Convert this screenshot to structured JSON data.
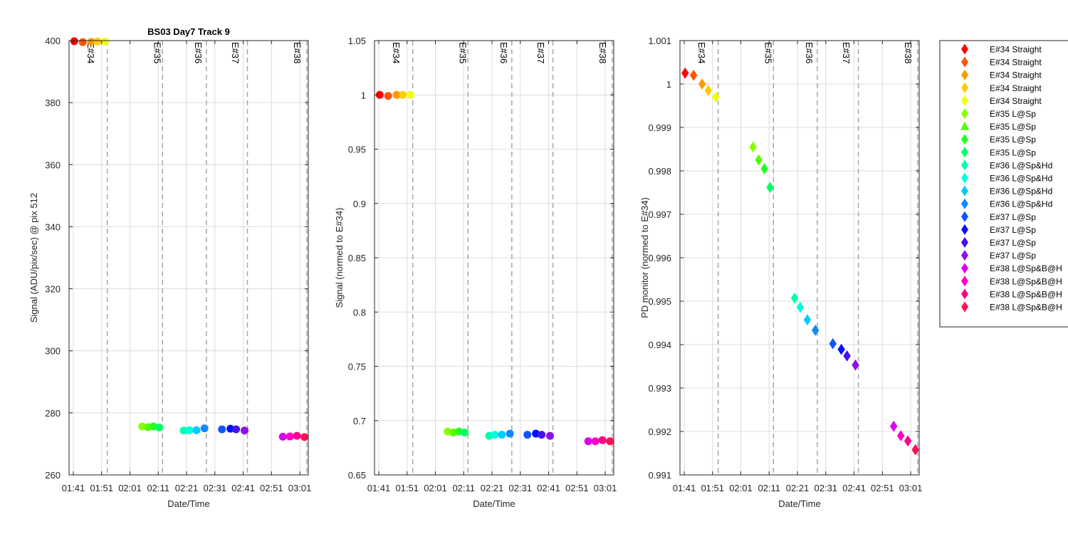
{
  "figure_title": "BS03 Day7 Track 9",
  "chart_data": [
    {
      "type": "scatter",
      "title": "BS03 Day7 Track 9",
      "xlabel": "Date/Time",
      "ylabel": "Signal (ADU/pix/sec) @ pix 512",
      "x_ticks": [
        "01:41",
        "01:51",
        "02:01",
        "02:11",
        "02:21",
        "02:31",
        "02:41",
        "02:51",
        "03:01"
      ],
      "x_range": [
        "01:39:30",
        "03:04:00"
      ],
      "ylim": [
        260,
        400
      ],
      "y_ticks": [
        "260",
        "280",
        "300",
        "320",
        "340",
        "360",
        "380",
        "400"
      ],
      "grid": true,
      "points": [
        {
          "x": "01:41:20",
          "y": 399.8,
          "color": "#ff0000"
        },
        {
          "x": "01:44:20",
          "y": 399.5,
          "color": "#ff5500"
        },
        {
          "x": "01:47:20",
          "y": 399.6,
          "color": "#ff9900"
        },
        {
          "x": "01:49:30",
          "y": 399.7,
          "color": "#ffcc00"
        },
        {
          "x": "01:52:10",
          "y": 399.7,
          "color": "#eeff11"
        },
        {
          "x": "02:05:20",
          "y": 275.6,
          "color": "#88ff00"
        },
        {
          "x": "02:07:20",
          "y": 275.4,
          "color": "#55ff00"
        },
        {
          "x": "02:09:20",
          "y": 275.6,
          "color": "#22ff22"
        },
        {
          "x": "02:11:20",
          "y": 275.3,
          "color": "#00ff66"
        },
        {
          "x": "02:20:00",
          "y": 274.3,
          "color": "#00ffaa"
        },
        {
          "x": "02:22:00",
          "y": 274.4,
          "color": "#00ffdd"
        },
        {
          "x": "02:24:30",
          "y": 274.4,
          "color": "#00ccff"
        },
        {
          "x": "02:27:20",
          "y": 275.0,
          "color": "#1188ff"
        },
        {
          "x": "02:33:30",
          "y": 274.7,
          "color": "#1155ff"
        },
        {
          "x": "02:36:30",
          "y": 274.9,
          "color": "#0011ff"
        },
        {
          "x": "02:38:30",
          "y": 274.7,
          "color": "#4411ee"
        },
        {
          "x": "02:41:30",
          "y": 274.3,
          "color": "#8811ee"
        },
        {
          "x": "02:55:00",
          "y": 272.3,
          "color": "#dd00ee"
        },
        {
          "x": "02:57:30",
          "y": 272.4,
          "color": "#ff00cc"
        },
        {
          "x": "03:00:00",
          "y": 272.6,
          "color": "#ff0088"
        },
        {
          "x": "03:02:40",
          "y": 272.2,
          "color": "#ff1155"
        }
      ],
      "event_labels": [
        "E#34",
        "E#35",
        "E#36",
        "E#37",
        "E#38"
      ]
    },
    {
      "type": "scatter",
      "xlabel": "Date/Time",
      "ylabel": "Signal (normed to E#34)",
      "x_ticks": [
        "01:41",
        "01:51",
        "02:01",
        "02:11",
        "02:21",
        "02:31",
        "02:41",
        "02:51",
        "03:01"
      ],
      "x_range": [
        "01:39:30",
        "03:04:00"
      ],
      "ylim": [
        0.65,
        1.05
      ],
      "y_ticks": [
        "0.65",
        "0.7",
        "0.75",
        "0.8",
        "0.85",
        "0.9",
        "0.95",
        "1",
        "1.05"
      ],
      "grid": true,
      "points": [
        {
          "x": "01:41:20",
          "y": 1.0,
          "color": "#ff0000"
        },
        {
          "x": "01:44:20",
          "y": 0.999,
          "color": "#ff5500"
        },
        {
          "x": "01:47:20",
          "y": 1.0,
          "color": "#ff9900"
        },
        {
          "x": "01:49:30",
          "y": 1.0,
          "color": "#ffcc00"
        },
        {
          "x": "01:52:10",
          "y": 1.0,
          "color": "#eeff11"
        },
        {
          "x": "02:05:20",
          "y": 0.69,
          "color": "#88ff00"
        },
        {
          "x": "02:07:20",
          "y": 0.689,
          "color": "#55ff00"
        },
        {
          "x": "02:09:20",
          "y": 0.69,
          "color": "#22ff22"
        },
        {
          "x": "02:11:20",
          "y": 0.689,
          "color": "#00ff66"
        },
        {
          "x": "02:20:00",
          "y": 0.686,
          "color": "#00ffaa"
        },
        {
          "x": "02:22:00",
          "y": 0.687,
          "color": "#00ffdd"
        },
        {
          "x": "02:24:30",
          "y": 0.687,
          "color": "#00ccff"
        },
        {
          "x": "02:27:20",
          "y": 0.688,
          "color": "#1188ff"
        },
        {
          "x": "02:33:30",
          "y": 0.687,
          "color": "#1155ff"
        },
        {
          "x": "02:36:30",
          "y": 0.688,
          "color": "#0011ff"
        },
        {
          "x": "02:38:30",
          "y": 0.687,
          "color": "#4411ee"
        },
        {
          "x": "02:41:30",
          "y": 0.686,
          "color": "#8811ee"
        },
        {
          "x": "02:55:00",
          "y": 0.681,
          "color": "#dd00ee"
        },
        {
          "x": "02:57:30",
          "y": 0.681,
          "color": "#ff00cc"
        },
        {
          "x": "03:00:00",
          "y": 0.682,
          "color": "#ff0088"
        },
        {
          "x": "03:02:40",
          "y": 0.681,
          "color": "#ff1155"
        }
      ],
      "event_labels": [
        "E#34",
        "E#35",
        "E#36",
        "E#37",
        "E#38"
      ]
    },
    {
      "type": "scatter",
      "xlabel": "Date/Time",
      "ylabel": "PD monitor (normed to E#34)",
      "x_ticks": [
        "01:41",
        "01:51",
        "02:01",
        "02:11",
        "02:21",
        "02:31",
        "02:41",
        "02:51",
        "03:01"
      ],
      "x_range": [
        "01:39:30",
        "03:04:00"
      ],
      "ylim": [
        0.991,
        1.001
      ],
      "y_ticks": [
        "0.991",
        "0.992",
        "0.993",
        "0.994",
        "0.995",
        "0.996",
        "0.997",
        "0.998",
        "0.999",
        "1",
        "1.001"
      ],
      "grid": true,
      "points": [
        {
          "x": "01:41:20",
          "y": 1.00025,
          "color": "#ff0000"
        },
        {
          "x": "01:44:20",
          "y": 1.0002,
          "color": "#ff5500"
        },
        {
          "x": "01:47:20",
          "y": 1.0,
          "color": "#ff9900"
        },
        {
          "x": "01:49:30",
          "y": 0.99985,
          "color": "#ffcc00"
        },
        {
          "x": "01:52:10",
          "y": 0.9997,
          "color": "#eeff11"
        },
        {
          "x": "02:05:20",
          "y": 0.99855,
          "color": "#88ff00"
        },
        {
          "x": "02:07:20",
          "y": 0.99825,
          "color": "#55ff00"
        },
        {
          "x": "02:09:20",
          "y": 0.99805,
          "color": "#22ff22"
        },
        {
          "x": "02:11:20",
          "y": 0.99762,
          "color": "#00ff66"
        },
        {
          "x": "02:20:00",
          "y": 0.99507,
          "color": "#00ffaa"
        },
        {
          "x": "02:22:00",
          "y": 0.99486,
          "color": "#00ffdd"
        },
        {
          "x": "02:24:30",
          "y": 0.99457,
          "color": "#00ccff"
        },
        {
          "x": "02:27:20",
          "y": 0.99433,
          "color": "#1188ff"
        },
        {
          "x": "02:33:30",
          "y": 0.99402,
          "color": "#1155ff"
        },
        {
          "x": "02:36:30",
          "y": 0.99389,
          "color": "#0011ff"
        },
        {
          "x": "02:38:30",
          "y": 0.99374,
          "color": "#4411ee"
        },
        {
          "x": "02:41:30",
          "y": 0.99353,
          "color": "#8811ee"
        },
        {
          "x": "02:55:00",
          "y": 0.99212,
          "color": "#dd00ee"
        },
        {
          "x": "02:57:30",
          "y": 0.9919,
          "color": "#ff00cc"
        },
        {
          "x": "03:00:00",
          "y": 0.99178,
          "color": "#ff0088"
        },
        {
          "x": "03:02:40",
          "y": 0.99158,
          "color": "#ff1155"
        }
      ],
      "event_labels": [
        "E#34",
        "E#35",
        "E#36",
        "E#37",
        "E#38"
      ]
    }
  ],
  "event_markers": [
    {
      "label": "E#34",
      "start": "01:41:00",
      "end": "01:53:00"
    },
    {
      "label": "E#35",
      "start": "02:04:30",
      "end": "02:12:30"
    },
    {
      "label": "E#36",
      "start": "02:19:00",
      "end": "02:28:00"
    },
    {
      "label": "E#37",
      "start": "02:32:00",
      "end": "02:42:30"
    },
    {
      "label": "E#38",
      "start": "02:54:00",
      "end": "03:03:30"
    }
  ],
  "legend": {
    "placement": "right",
    "entries": [
      {
        "label": "E#34 Straight",
        "marker": "diamond",
        "color": "#ff0000"
      },
      {
        "label": "E#34 Straight",
        "marker": "diamond",
        "color": "#ff5500"
      },
      {
        "label": "E#34 Straight",
        "marker": "diamond",
        "color": "#ff9900"
      },
      {
        "label": "E#34 Straight",
        "marker": "diamond",
        "color": "#ffcc00"
      },
      {
        "label": "E#34 Straight",
        "marker": "diamond",
        "color": "#eeff11"
      },
      {
        "label": "E#35 L@Sp",
        "marker": "diamond",
        "color": "#88ff00"
      },
      {
        "label": "E#35 L@Sp",
        "marker": "triangle",
        "color": "#55ff00"
      },
      {
        "label": "E#35 L@Sp",
        "marker": "diamond",
        "color": "#22ff22"
      },
      {
        "label": "E#35 L@Sp",
        "marker": "diamond",
        "color": "#00ff66"
      },
      {
        "label": "E#36 L@Sp&Hd",
        "marker": "diamond",
        "color": "#00ffaa"
      },
      {
        "label": "E#36 L@Sp&Hd",
        "marker": "diamond",
        "color": "#00ffdd"
      },
      {
        "label": "E#36 L@Sp&Hd",
        "marker": "diamond",
        "color": "#00ccff"
      },
      {
        "label": "E#36 L@Sp&Hd",
        "marker": "diamond",
        "color": "#1188ff"
      },
      {
        "label": "E#37 L@Sp",
        "marker": "diamond",
        "color": "#1155ff"
      },
      {
        "label": "E#37 L@Sp",
        "marker": "diamond",
        "color": "#0011ff"
      },
      {
        "label": "E#37 L@Sp",
        "marker": "diamond",
        "color": "#4411ee"
      },
      {
        "label": "E#37 L@Sp",
        "marker": "diamond",
        "color": "#8811ee"
      },
      {
        "label": "E#38 L@Sp&B@H",
        "marker": "diamond",
        "color": "#dd00ee"
      },
      {
        "label": "E#38 L@Sp&B@H",
        "marker": "diamond",
        "color": "#ff00cc"
      },
      {
        "label": "E#38 L@Sp&B@H",
        "marker": "diamond",
        "color": "#ff0088"
      },
      {
        "label": "E#38 L@Sp&B@H",
        "marker": "diamond",
        "color": "#ff1155"
      }
    ]
  }
}
